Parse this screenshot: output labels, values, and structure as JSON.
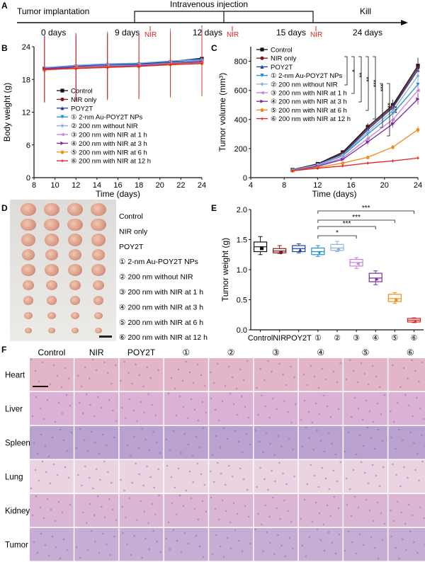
{
  "panels": {
    "A": "A",
    "B": "B",
    "C": "C",
    "D": "D",
    "E": "E",
    "F": "F"
  },
  "timeline": {
    "tumor_implantation": "Tumor implantation",
    "intravenous_injection": "Intravenous injection",
    "kill": "Kill",
    "days": [
      "0 days",
      "9 days",
      "12 days",
      "15 days",
      "24 days"
    ],
    "nir": "NIR"
  },
  "legend": [
    {
      "label": "Control",
      "color": "#111111"
    },
    {
      "label": "NIR only",
      "color": "#7b1a1a"
    },
    {
      "label": "POY2T",
      "color": "#1f3f9f"
    },
    {
      "label": "① 2-nm Au-POY2T NPs",
      "color": "#1e8fd6"
    },
    {
      "label": "② 200 nm without NIR",
      "color": "#8fb0d8"
    },
    {
      "label": "③ 200 nm with NIR at 1 h",
      "color": "#c77fd9"
    },
    {
      "label": "④ 200 nm with NIR at 3 h",
      "color": "#7a2aa0"
    },
    {
      "label": "⑤ 200 nm with NIR at 6 h",
      "color": "#f08c1c"
    },
    {
      "label": "⑥ 200 nm with NIR at 12 h",
      "color": "#e02020"
    }
  ],
  "chart_data": [
    {
      "id": "B",
      "type": "line",
      "title": "",
      "xlabel": "Time (days)",
      "ylabel": "Body weight (g)",
      "xlim": [
        8,
        24
      ],
      "ylim": [
        0,
        24
      ],
      "xticks": [
        "8",
        "10",
        "12",
        "14",
        "16",
        "18",
        "20",
        "22",
        "24"
      ],
      "yticks": [
        "0",
        "6",
        "12",
        "18",
        "24"
      ],
      "x": [
        9,
        12,
        15,
        18,
        21,
        24
      ],
      "series": [
        {
          "name": "Control",
          "values": [
            20.0,
            20.4,
            20.6,
            20.8,
            21.2,
            21.8
          ]
        },
        {
          "name": "NIR only",
          "values": [
            19.8,
            20.2,
            20.4,
            20.6,
            21.0,
            21.4
          ]
        },
        {
          "name": "POY2T",
          "values": [
            20.1,
            20.5,
            20.7,
            20.9,
            21.3,
            21.9
          ]
        },
        {
          "name": "① 2-nm Au-POY2T NPs",
          "values": [
            20.0,
            20.3,
            20.6,
            20.7,
            21.1,
            21.5
          ]
        },
        {
          "name": "② 200 nm without NIR",
          "values": [
            20.2,
            20.6,
            20.9,
            21.0,
            21.4,
            21.6
          ]
        },
        {
          "name": "③ 200 nm with NIR at 1 h",
          "values": [
            19.9,
            20.3,
            20.5,
            20.6,
            21.0,
            21.3
          ]
        },
        {
          "name": "④ 200 nm with NIR at 3 h",
          "values": [
            20.0,
            20.2,
            20.4,
            20.5,
            20.9,
            21.2
          ]
        },
        {
          "name": "⑤ 200 nm with NIR at 6 h",
          "values": [
            19.7,
            20.1,
            20.3,
            20.4,
            20.8,
            21.0
          ]
        },
        {
          "name": "⑥ 200 nm with NIR at 12 h",
          "values": [
            19.8,
            20.0,
            20.2,
            20.4,
            20.7,
            20.9
          ]
        }
      ]
    },
    {
      "id": "C",
      "type": "line",
      "title": "",
      "xlabel": "Time (days)",
      "ylabel": "Tumor volume (mm³)",
      "xlim": [
        4,
        24
      ],
      "ylim": [
        0,
        900
      ],
      "xticks": [
        "4",
        "8",
        "12",
        "16",
        "20",
        "24"
      ],
      "yticks": [
        "0",
        "200",
        "400",
        "600",
        "800"
      ],
      "x": [
        9,
        12,
        15,
        18,
        21,
        24
      ],
      "significance": [
        "*",
        "**",
        "**",
        "***",
        "***",
        "**",
        "***"
      ],
      "series": [
        {
          "name": "Control",
          "values": [
            55,
            95,
            175,
            350,
            500,
            770
          ]
        },
        {
          "name": "NIR only",
          "values": [
            53,
            92,
            168,
            340,
            490,
            755
          ]
        },
        {
          "name": "POY2T",
          "values": [
            54,
            90,
            160,
            330,
            480,
            740
          ]
        },
        {
          "name": "① 2-nm Au-POY2T NPs",
          "values": [
            52,
            85,
            150,
            300,
            440,
            640
          ]
        },
        {
          "name": "② 200 nm without NIR",
          "values": [
            53,
            88,
            155,
            315,
            460,
            700
          ]
        },
        {
          "name": "③ 200 nm with NIR at 1 h",
          "values": [
            50,
            80,
            135,
            270,
            400,
            600
          ]
        },
        {
          "name": "④ 200 nm with NIR at 3 h",
          "values": [
            50,
            78,
            125,
            245,
            370,
            540
          ]
        },
        {
          "name": "⑤ 200 nm with NIR at 6 h",
          "values": [
            48,
            70,
            100,
            140,
            210,
            330
          ]
        },
        {
          "name": "⑥ 200 nm with NIR at 12 h",
          "values": [
            47,
            65,
            80,
            100,
            115,
            135
          ]
        }
      ]
    },
    {
      "id": "E",
      "type": "box",
      "title": "",
      "xlabel": "",
      "ylabel": "Tumor weight (g)",
      "ylim": [
        0,
        2.0
      ],
      "yticks": [
        "0.0",
        "0.5",
        "1.0",
        "1.5",
        "2.0"
      ],
      "categories": [
        "Control",
        "NIR",
        "POY2T",
        "①",
        "②",
        "③",
        "④",
        "⑤",
        "⑥"
      ],
      "significance": [
        "*",
        "***",
        "***",
        "***"
      ],
      "boxes": [
        {
          "name": "Control",
          "min": 1.25,
          "q1": 1.3,
          "median": 1.38,
          "q3": 1.46,
          "max": 1.55,
          "color": "#111111"
        },
        {
          "name": "NIR",
          "min": 1.27,
          "q1": 1.28,
          "median": 1.31,
          "q3": 1.35,
          "max": 1.4,
          "color": "#7b1a1a"
        },
        {
          "name": "POY2T",
          "min": 1.28,
          "q1": 1.3,
          "median": 1.35,
          "q3": 1.4,
          "max": 1.43,
          "color": "#1f3f9f"
        },
        {
          "name": "①",
          "min": 1.22,
          "q1": 1.25,
          "median": 1.3,
          "q3": 1.36,
          "max": 1.4,
          "color": "#1e8fd6"
        },
        {
          "name": "②",
          "min": 1.3,
          "q1": 1.32,
          "median": 1.36,
          "q3": 1.42,
          "max": 1.47,
          "color": "#8fb0d8"
        },
        {
          "name": "③",
          "min": 1.02,
          "q1": 1.06,
          "median": 1.12,
          "q3": 1.17,
          "max": 1.2,
          "color": "#c77fd9"
        },
        {
          "name": "④",
          "min": 0.75,
          "q1": 0.8,
          "median": 0.86,
          "q3": 0.94,
          "max": 0.98,
          "color": "#7a2aa0"
        },
        {
          "name": "⑤",
          "min": 0.44,
          "q1": 0.47,
          "median": 0.52,
          "q3": 0.59,
          "max": 0.62,
          "color": "#f08c1c"
        },
        {
          "name": "⑥",
          "min": 0.12,
          "q1": 0.13,
          "median": 0.16,
          "q3": 0.19,
          "max": 0.2,
          "color": "#e02020"
        }
      ]
    }
  ],
  "fig_d": {
    "labels": [
      "Control",
      "NIR only",
      "POY2T",
      "① 2-nm Au-POY2T NPs",
      "② 200 nm without NIR",
      "③ 200 nm with NIR at 1 h",
      "④ 200 nm with NIR at 3 h",
      "⑤ 200 nm with NIR at 6 h",
      "⑥ 200 nm with NIR at 12 h"
    ],
    "row_scales": [
      1.0,
      0.95,
      0.92,
      0.82,
      0.85,
      0.72,
      0.58,
      0.45,
      0.32
    ]
  },
  "fig_f": {
    "columns": [
      "Control",
      "NIR",
      "POY2T",
      "①",
      "②",
      "③",
      "④",
      "⑤",
      "⑥"
    ],
    "rows": [
      {
        "label": "Heart",
        "color": "#e3b5c9"
      },
      {
        "label": "Liver",
        "color": "#d9b2d6"
      },
      {
        "label": "Spleen",
        "color": "#b9a1d0"
      },
      {
        "label": "Lung",
        "color": "#ecd3e2"
      },
      {
        "label": "Kidney",
        "color": "#dbb6d4"
      },
      {
        "label": "Tumor",
        "color": "#c7acd4"
      }
    ]
  }
}
